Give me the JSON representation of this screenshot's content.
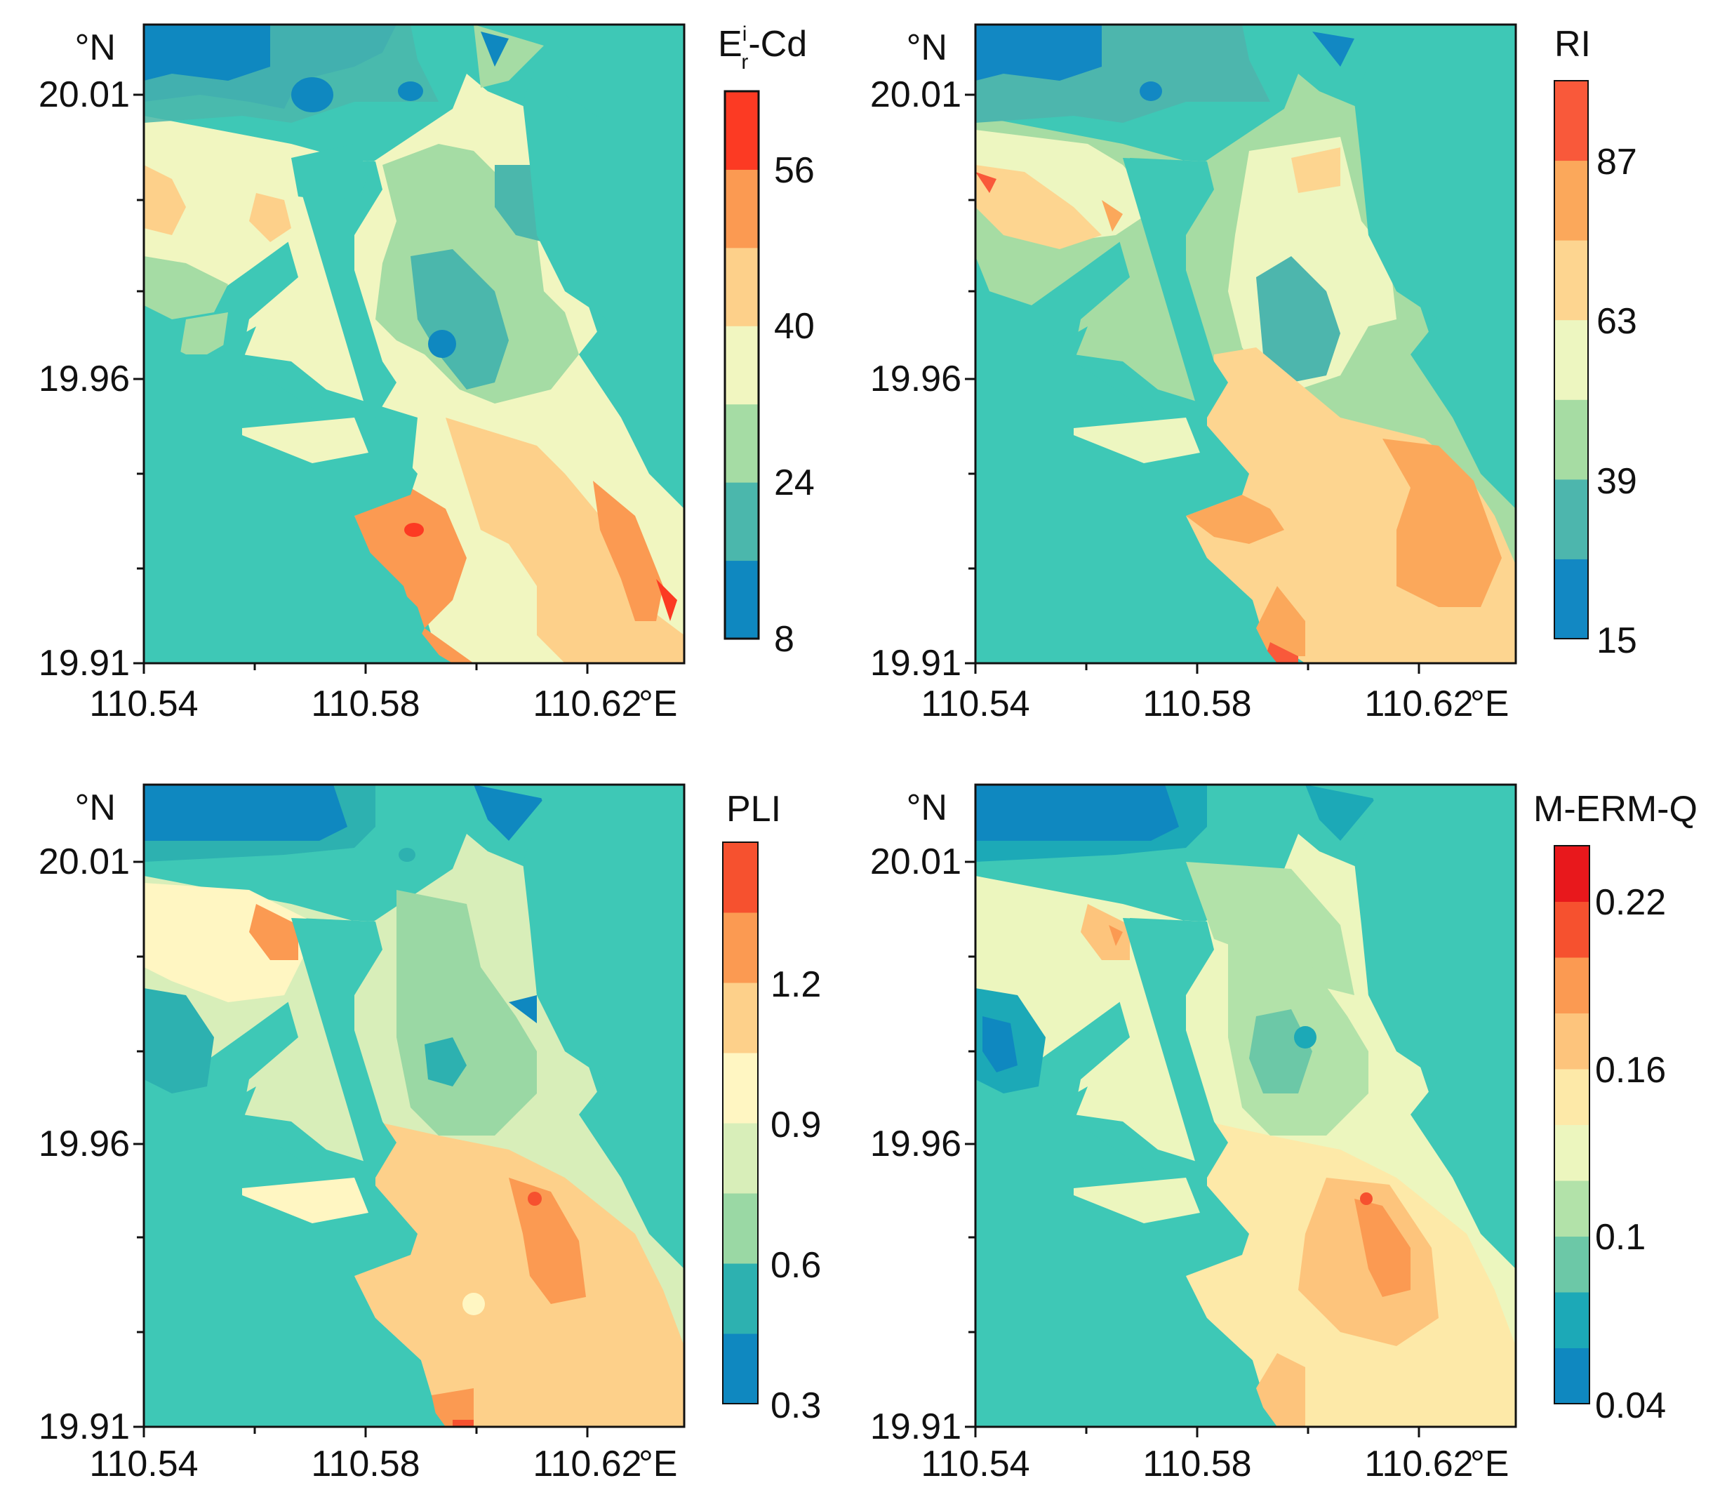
{
  "figure": {
    "panels": [
      {
        "id": "cd",
        "title_main": "E",
        "title_sup": "i",
        "title_sub": "r",
        "title_rest": "-Cd",
        "colorbar": {
          "labels": [
            "8",
            "24",
            "40",
            "56"
          ],
          "colors": [
            "#0f88c0",
            "#4bb7ac",
            "#a5dca4",
            "#f1f6c0",
            "#fdd08a",
            "#fb9a52",
            "#fc3a23"
          ]
        }
      },
      {
        "id": "ri",
        "title_main": "RI",
        "colorbar": {
          "labels": [
            "15",
            "39",
            "63",
            "87"
          ],
          "colors": [
            "#1288c3",
            "#4db6ad",
            "#a6dca3",
            "#edf6c0",
            "#fdd590",
            "#fba85b",
            "#f9593a"
          ]
        }
      },
      {
        "id": "pli",
        "title_main": "PLI",
        "colorbar": {
          "labels": [
            "0.3",
            "0.6",
            "0.9",
            "1.2"
          ],
          "colors": [
            "#0f88c0",
            "#2db1b0",
            "#9ad8a4",
            "#d8eeb9",
            "#fff6c2",
            "#fdd08a",
            "#fb9a52",
            "#f6512f"
          ]
        }
      },
      {
        "id": "merm",
        "title_main": "M-ERM-Q",
        "colorbar": {
          "labels": [
            "0.04",
            "0.1",
            "0.16",
            "0.22"
          ],
          "colors": [
            "#0f88c0",
            "#1ca9b7",
            "#6cc8a7",
            "#b2e2a9",
            "#ecf6be",
            "#fde9a8",
            "#fdc47c",
            "#fb9a52",
            "#f6512f",
            "#e8181c"
          ]
        }
      }
    ],
    "x_ticks": [
      "110.54",
      "110.58",
      "110.62"
    ],
    "x_unit": "°E",
    "y_ticks": [
      "20.01",
      "19.96",
      "19.91"
    ],
    "y_unit": "°N",
    "colors": {
      "sea": "#3ec8b6",
      "axis": "#111111"
    }
  }
}
